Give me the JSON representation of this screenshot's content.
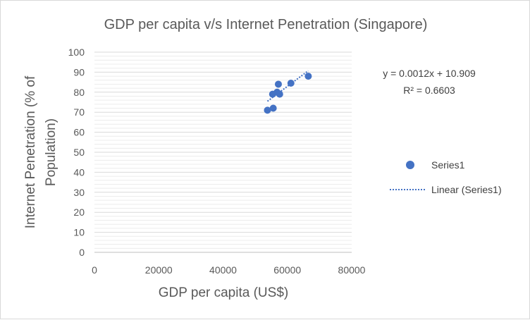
{
  "chart_data": {
    "type": "scatter",
    "title": "GDP per capita v/s Internet Penetration (Singapore)",
    "xlabel": "GDP per capita (US$)",
    "ylabel_lines": [
      "Internet Penetration (% of",
      "Population)"
    ],
    "xlim": [
      0,
      80000
    ],
    "ylim": [
      0,
      100
    ],
    "x_ticks": [
      0,
      20000,
      40000,
      60000,
      80000
    ],
    "y_ticks": [
      0,
      10,
      20,
      30,
      40,
      50,
      60,
      70,
      80,
      90,
      100
    ],
    "grid": "horizontal major and minor",
    "series": [
      {
        "name": "Series1",
        "color": "#4472c4",
        "points": [
          {
            "x": 53800,
            "y": 71
          },
          {
            "x": 55600,
            "y": 72
          },
          {
            "x": 55400,
            "y": 79
          },
          {
            "x": 56800,
            "y": 80
          },
          {
            "x": 57200,
            "y": 84
          },
          {
            "x": 57600,
            "y": 79
          },
          {
            "x": 61100,
            "y": 84.5
          },
          {
            "x": 66500,
            "y": 88
          }
        ]
      }
    ],
    "trendline": {
      "name": "Linear (Series1)",
      "slope": 0.0012,
      "intercept": 10.909,
      "x_range": [
        53800,
        66500
      ],
      "style": "dotted",
      "color": "#4472c4"
    },
    "equation": "y = 0.0012x + 10.909",
    "r_squared": "R² = 0.6603",
    "legend_position": "right"
  }
}
